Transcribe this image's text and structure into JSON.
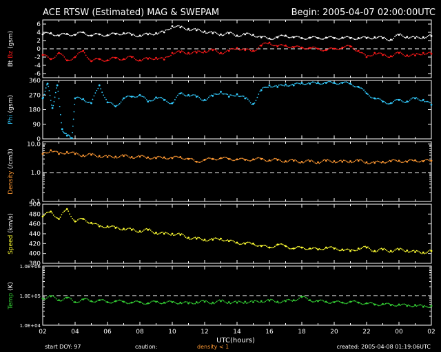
{
  "header": {
    "title": "ACE RTSW (Estimated) MAG & SWEPAM",
    "begin": "Begin: 2005-04-07 02:00:00UTC"
  },
  "footer": {
    "start_doy": "start DOY:  97",
    "caution": "caution:",
    "density_note": "density < 1",
    "created": "created: 2005-04-08 01:19:06UTC"
  },
  "colors": {
    "bt": "#ffffff",
    "bz": "#ff1a1a",
    "phi": "#33ccff",
    "density": "#ff9933",
    "speed": "#ffff33",
    "temp": "#33cc33",
    "axes": "#ffffff",
    "background": "#000000"
  },
  "chart_data": {
    "type": "scatter",
    "x_axis": {
      "xlabel": "UTC(hours)",
      "xlim_hours": [
        2,
        26
      ],
      "tick_labels": [
        "02",
        "04",
        "06",
        "08",
        "10",
        "12",
        "14",
        "16",
        "18",
        "20",
        "22",
        "00",
        "02"
      ]
    },
    "panels": [
      {
        "id": "mag",
        "ylabel_parts": [
          {
            "text": "Bt",
            "color": "#ffffff"
          },
          {
            "text": " Bz",
            "color": "#ff1a1a"
          },
          {
            "text": " (gsm)",
            "color": "#ffffff"
          }
        ],
        "ylim": [
          -7,
          7
        ],
        "scale": "linear",
        "tick_values": [
          6,
          4,
          2,
          0,
          -2,
          -4,
          -6
        ],
        "tick_labels": [
          "6",
          "4",
          "2",
          "0",
          "-2",
          "-4",
          "-6"
        ],
        "dashed_lines": [
          0
        ],
        "series": [
          {
            "name": "Bt",
            "color": "#ffffff",
            "x": [
              2.0,
              2.5,
              3.0,
              3.5,
              4.0,
              4.5,
              5.0,
              5.5,
              6.0,
              6.5,
              7.0,
              7.5,
              8.0,
              8.5,
              9.0,
              9.5,
              10.0,
              10.5,
              11.0,
              11.5,
              12.0,
              12.5,
              13.0,
              13.5,
              14.0,
              14.5,
              15.0,
              15.5,
              16.0,
              16.5,
              17.0,
              17.5,
              18.0,
              18.5,
              19.0,
              19.5,
              20.0,
              20.5,
              21.0,
              21.5,
              22.0,
              22.5,
              23.0,
              23.5,
              24.0,
              24.5,
              25.0,
              25.5,
              26.0
            ],
            "y": [
              3.5,
              3.8,
              3.2,
              3.6,
              3.4,
              4.0,
              3.2,
              3.5,
              3.3,
              3.6,
              3.8,
              3.4,
              3.2,
              3.5,
              3.8,
              4.0,
              5.5,
              5.2,
              4.8,
              4.5,
              4.2,
              3.8,
              3.5,
              3.8,
              3.2,
              3.5,
              3.4,
              2.8,
              2.5,
              2.8,
              3.2,
              2.8,
              2.6,
              2.7,
              2.6,
              2.7,
              2.6,
              2.7,
              2.6,
              2.6,
              2.6,
              2.8,
              2.6,
              2.2,
              3.4,
              2.9,
              2.6,
              2.8,
              3.1
            ]
          },
          {
            "name": "Bz",
            "color": "#ff1a1a",
            "x": [
              2.0,
              2.5,
              3.0,
              3.5,
              4.0,
              4.5,
              5.0,
              5.5,
              6.0,
              6.5,
              7.0,
              7.5,
              8.0,
              8.5,
              9.0,
              9.5,
              10.0,
              10.5,
              11.0,
              11.5,
              12.0,
              12.5,
              13.0,
              13.5,
              14.0,
              14.5,
              15.0,
              15.5,
              16.0,
              16.5,
              17.0,
              17.5,
              18.0,
              18.5,
              19.0,
              19.5,
              20.0,
              20.5,
              21.0,
              21.5,
              22.0,
              22.5,
              23.0,
              23.5,
              24.0,
              24.5,
              25.0,
              25.5,
              26.0
            ],
            "y": [
              -1.5,
              -2.5,
              -1.0,
              -2.8,
              -2.0,
              -0.5,
              -3.0,
              -2.5,
              -2.8,
              -2.2,
              -2.5,
              -2.0,
              -2.8,
              -2.4,
              -2.2,
              -2.6,
              -1.0,
              -0.8,
              -1.0,
              -0.9,
              -0.6,
              -0.3,
              -1.0,
              -0.5,
              0.2,
              -0.3,
              -0.5,
              0.8,
              1.5,
              0.6,
              0.8,
              0.4,
              0.3,
              0.2,
              0.0,
              -0.3,
              0.0,
              0.3,
              0.6,
              -0.5,
              -2.0,
              -1.0,
              -1.5,
              -1.8,
              -1.0,
              -1.6,
              -1.6,
              -1.0,
              -1.2
            ]
          }
        ]
      },
      {
        "id": "phi",
        "ylabel_parts": [
          {
            "text": "Phi",
            "color": "#33ccff"
          },
          {
            "text": " (gsm)",
            "color": "#ffffff"
          }
        ],
        "ylim": [
          0,
          360
        ],
        "scale": "linear",
        "tick_values": [
          360,
          270,
          180,
          90,
          0
        ],
        "tick_labels": [
          "360",
          "270",
          "180",
          "90",
          "0"
        ],
        "dashed_lines": [],
        "series": [
          {
            "name": "Phi",
            "color": "#33ccff",
            "x": [
              2.0,
              2.3,
              2.6,
              2.9,
              3.2,
              3.5,
              3.8,
              4.0,
              4.5,
              5.0,
              5.5,
              6.0,
              6.5,
              7.0,
              7.5,
              8.0,
              8.5,
              9.0,
              9.5,
              10.0,
              10.5,
              11.0,
              11.5,
              12.0,
              12.5,
              13.0,
              13.5,
              14.0,
              14.5,
              15.0,
              15.5,
              16.0,
              16.5,
              17.0,
              17.5,
              18.0,
              18.5,
              19.0,
              19.5,
              20.0,
              20.5,
              21.0,
              21.5,
              22.0,
              22.5,
              23.0,
              23.5,
              24.0,
              24.5,
              25.0,
              25.5,
              26.0
            ],
            "y": [
              250,
              340,
              190,
              330,
              60,
              20,
              5,
              250,
              245,
              220,
              330,
              225,
              200,
              250,
              260,
              270,
              230,
              255,
              240,
              220,
              280,
              270,
              260,
              240,
              265,
              290,
              260,
              275,
              250,
              215,
              300,
              330,
              320,
              335,
              330,
              345,
              340,
              345,
              345,
              345,
              345,
              340,
              320,
              280,
              250,
              230,
              220,
              240,
              230,
              250,
              240,
              210
            ]
          }
        ]
      },
      {
        "id": "density",
        "ylabel_parts": [
          {
            "text": "Density",
            "color": "#ff9933"
          },
          {
            "text": " (/cm3)",
            "color": "#ffffff"
          }
        ],
        "ylim": [
          0.1,
          12
        ],
        "scale": "log",
        "tick_values": [
          10,
          1,
          0.1
        ],
        "tick_labels": [
          "10.0",
          "1.0",
          "0.1"
        ],
        "dashed_lines": [
          1
        ],
        "series": [
          {
            "name": "Density",
            "color": "#ff9933",
            "x": [
              2.0,
              2.5,
              3.0,
              3.5,
              4.0,
              4.5,
              5.0,
              5.5,
              6.0,
              6.5,
              7.0,
              7.5,
              8.0,
              8.5,
              9.0,
              9.5,
              10.0,
              10.5,
              11.0,
              11.5,
              12.0,
              12.5,
              13.0,
              13.5,
              14.0,
              14.5,
              15.0,
              15.5,
              16.0,
              16.5,
              17.0,
              17.5,
              18.0,
              18.5,
              19.0,
              19.5,
              20.0,
              20.5,
              21.0,
              21.5,
              22.0,
              22.5,
              23.0,
              23.5,
              24.0,
              24.5,
              25.0,
              25.5,
              26.0
            ],
            "y": [
              4.5,
              6.0,
              4.5,
              5.2,
              4.5,
              4.0,
              4.2,
              3.8,
              3.5,
              3.6,
              3.8,
              3.5,
              3.6,
              3.4,
              3.2,
              3.4,
              3.2,
              3.5,
              3.0,
              2.4,
              2.8,
              3.0,
              3.2,
              3.0,
              2.9,
              2.8,
              2.9,
              3.0,
              2.7,
              2.8,
              2.5,
              2.6,
              2.4,
              2.5,
              2.3,
              2.6,
              2.5,
              2.4,
              2.5,
              2.6,
              2.3,
              2.2,
              2.4,
              2.5,
              2.6,
              2.4,
              2.7,
              2.5,
              2.6
            ]
          }
        ]
      },
      {
        "id": "speed",
        "ylabel_parts": [
          {
            "text": "Speed",
            "color": "#ffff33"
          },
          {
            "text": " (km/s)",
            "color": "#ffffff"
          }
        ],
        "ylim": [
          380,
          500
        ],
        "scale": "linear",
        "tick_values": [
          500,
          480,
          460,
          440,
          420,
          400,
          380
        ],
        "tick_labels": [
          "500",
          "480",
          "460",
          "440",
          "420",
          "400",
          "380"
        ],
        "dashed_lines": [],
        "series": [
          {
            "name": "Speed",
            "color": "#ffff33",
            "x": [
              2.0,
              2.5,
              3.0,
              3.5,
              4.0,
              4.5,
              5.0,
              5.5,
              6.0,
              6.5,
              7.0,
              7.5,
              8.0,
              8.5,
              9.0,
              9.5,
              10.0,
              10.5,
              11.0,
              11.5,
              12.0,
              12.5,
              13.0,
              13.5,
              14.0,
              14.5,
              15.0,
              15.5,
              16.0,
              16.5,
              17.0,
              17.5,
              18.0,
              18.5,
              19.0,
              19.5,
              20.0,
              20.5,
              21.0,
              21.5,
              22.0,
              22.5,
              23.0,
              23.5,
              24.0,
              24.5,
              25.0,
              25.5,
              26.0
            ],
            "y": [
              475,
              485,
              470,
              490,
              465,
              470,
              462,
              455,
              455,
              452,
              450,
              448,
              445,
              448,
              442,
              440,
              440,
              438,
              432,
              430,
              428,
              428,
              430,
              425,
              422,
              420,
              420,
              415,
              412,
              418,
              415,
              410,
              412,
              410,
              408,
              412,
              410,
              408,
              405,
              410,
              412,
              405,
              408,
              405,
              408,
              406,
              403,
              402,
              405
            ]
          }
        ]
      },
      {
        "id": "temp",
        "ylabel_parts": [
          {
            "text": "Temp",
            "color": "#33cc33"
          },
          {
            "text": " (K)",
            "color": "#ffffff"
          }
        ],
        "ylim": [
          10000,
          1000000
        ],
        "scale": "log",
        "tick_values": [
          1000000,
          100000,
          10000
        ],
        "tick_labels": [
          "1.0E+06",
          "1.0E+05",
          "1.0E+04"
        ],
        "dashed_lines": [
          100000
        ],
        "series": [
          {
            "name": "Temp",
            "color": "#33cc33",
            "x": [
              2.0,
              2.5,
              3.0,
              3.5,
              4.0,
              4.5,
              5.0,
              5.5,
              6.0,
              6.5,
              7.0,
              7.5,
              8.0,
              8.5,
              9.0,
              9.5,
              10.0,
              10.5,
              11.0,
              11.5,
              12.0,
              12.5,
              13.0,
              13.5,
              14.0,
              14.5,
              15.0,
              15.5,
              16.0,
              16.5,
              17.0,
              17.5,
              18.0,
              18.5,
              19.0,
              19.5,
              20.0,
              20.5,
              21.0,
              21.5,
              22.0,
              22.5,
              23.0,
              23.5,
              24.0,
              24.5,
              25.0,
              25.5,
              26.0
            ],
            "y": [
              80000,
              95000,
              70000,
              85000,
              60000,
              75000,
              65000,
              70000,
              60000,
              65000,
              62000,
              58000,
              60000,
              55000,
              62000,
              58000,
              60000,
              58000,
              55000,
              60000,
              62000,
              58000,
              65000,
              60000,
              58000,
              62000,
              60000,
              65000,
              68000,
              62000,
              65000,
              70000,
              90000,
              70000,
              65000,
              62000,
              60000,
              58000,
              62000,
              58000,
              55000,
              50000,
              52000,
              48000,
              50000,
              45000,
              48000,
              42000,
              45000
            ]
          }
        ]
      }
    ]
  }
}
